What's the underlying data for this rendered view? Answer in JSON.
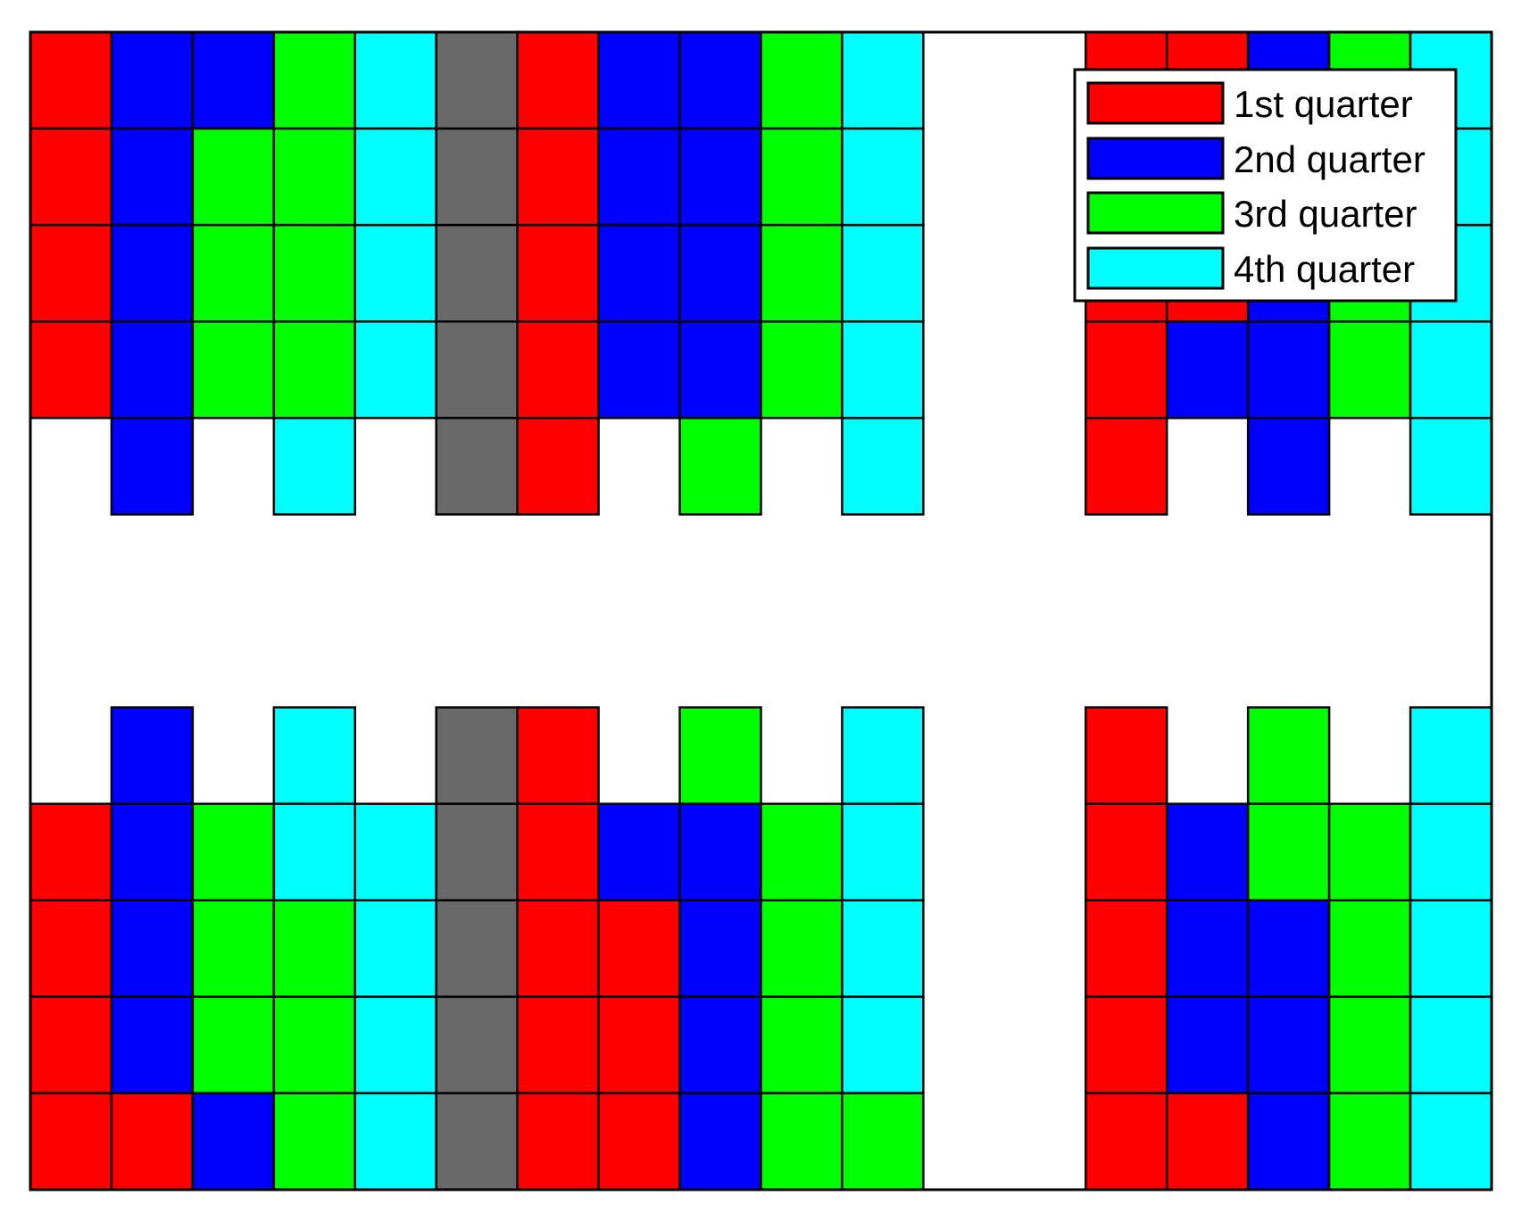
{
  "chart_data": {
    "type": "heatmap",
    "title": "",
    "xlabel": "",
    "ylabel": "",
    "grid": true,
    "legend_position": "top-right",
    "columns": 18,
    "rows": 12,
    "colors": {
      "1": "#ff0000",
      "2": "#0000ff",
      "3": "#00ff00",
      "4": "#00ffff",
      "G": "#696969",
      "empty": "#ffffff",
      "border": "#000000"
    },
    "legend": [
      {
        "key": "1",
        "label": "1st quarter"
      },
      {
        "key": "2",
        "label": "2nd quarter"
      },
      {
        "key": "3",
        "label": "3rd quarter"
      },
      {
        "key": "4",
        "label": "4th quarter"
      }
    ],
    "grid_rows": [
      [
        "1",
        "2",
        "2",
        "3",
        "4",
        "G",
        "1",
        "2",
        "2",
        "3",
        "4",
        "",
        "",
        "1",
        "1",
        "2",
        "3",
        "4"
      ],
      [
        "1",
        "2",
        "3",
        "3",
        "4",
        "G",
        "1",
        "2",
        "2",
        "3",
        "4",
        "",
        "",
        "1",
        "1",
        "2",
        "3",
        "4"
      ],
      [
        "1",
        "2",
        "3",
        "3",
        "4",
        "G",
        "1",
        "2",
        "2",
        "3",
        "4",
        "",
        "",
        "1",
        "1",
        "2",
        "3",
        "4"
      ],
      [
        "1",
        "2",
        "3",
        "3",
        "4",
        "G",
        "1",
        "2",
        "2",
        "3",
        "4",
        "",
        "",
        "1",
        "2",
        "2",
        "3",
        "4"
      ],
      [
        "",
        "2",
        "",
        "4",
        "",
        "G",
        "1",
        "",
        "3",
        "",
        "4",
        "",
        "",
        "1",
        "",
        "2",
        "",
        "4"
      ],
      [
        "",
        "",
        "",
        "",
        "",
        "",
        "",
        "",
        "",
        "",
        "",
        "",
        "",
        "",
        "",
        "",
        "",
        ""
      ],
      [
        "",
        "",
        "",
        "",
        "",
        "",
        "",
        "",
        "",
        "",
        "",
        "",
        "",
        "",
        "",
        "",
        "",
        ""
      ],
      [
        "",
        "2",
        "",
        "4",
        "",
        "G",
        "1",
        "",
        "3",
        "",
        "4",
        "",
        "",
        "1",
        "",
        "3",
        "",
        "4"
      ],
      [
        "1",
        "2",
        "3",
        "4",
        "4",
        "G",
        "1",
        "2",
        "2",
        "3",
        "4",
        "",
        "",
        "1",
        "2",
        "3",
        "3",
        "4"
      ],
      [
        "1",
        "2",
        "3",
        "3",
        "4",
        "G",
        "1",
        "1",
        "2",
        "3",
        "4",
        "",
        "",
        "1",
        "2",
        "2",
        "3",
        "4"
      ],
      [
        "1",
        "2",
        "3",
        "3",
        "4",
        "G",
        "1",
        "1",
        "2",
        "3",
        "4",
        "",
        "",
        "1",
        "2",
        "2",
        "3",
        "4"
      ],
      [
        "1",
        "1",
        "2",
        "3",
        "4",
        "G",
        "1",
        "1",
        "2",
        "3",
        "3",
        "",
        "",
        "1",
        "1",
        "2",
        "3",
        "4"
      ]
    ]
  }
}
